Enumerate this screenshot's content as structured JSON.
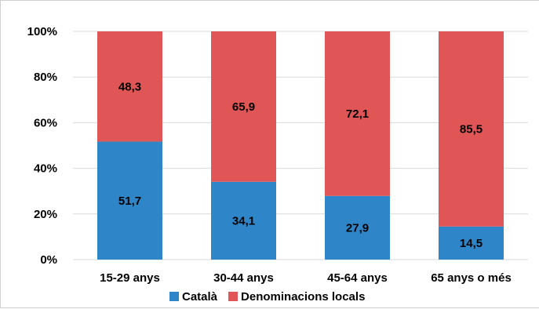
{
  "chart_data": {
    "type": "bar",
    "stacked": true,
    "percent": true,
    "categories": [
      "15-29 anys",
      "30-44 anys",
      "45-64 anys",
      "65 anys o més"
    ],
    "series": [
      {
        "name": "Català",
        "color": "#2e86c8",
        "values": [
          51.7,
          34.1,
          27.9,
          14.5
        ],
        "labels": [
          "51,7",
          "34,1",
          "27,9",
          "14,5"
        ]
      },
      {
        "name": "Denominacions locals",
        "color": "#e05555",
        "values": [
          48.3,
          65.9,
          72.1,
          85.5
        ],
        "labels": [
          "48,3",
          "65,9",
          "72,1",
          "85,5"
        ]
      }
    ],
    "yticks": [
      "0%",
      "20%",
      "40%",
      "60%",
      "80%",
      "100%"
    ],
    "ylim": [
      0,
      100
    ],
    "grid": true,
    "legend": "bottom"
  }
}
